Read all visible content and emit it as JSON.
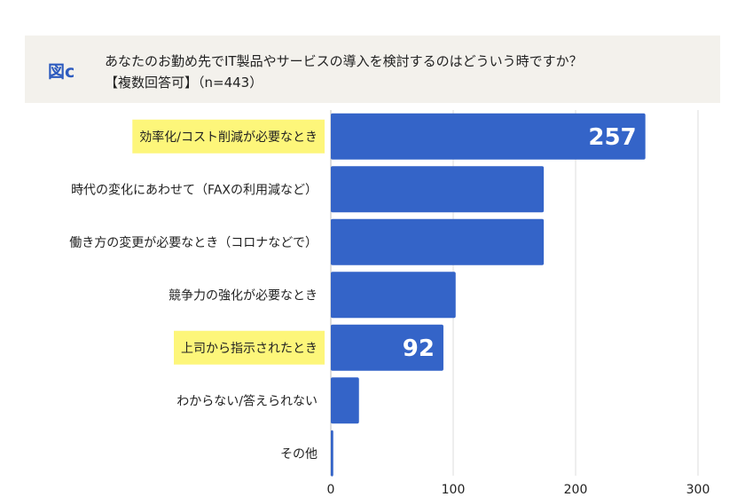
{
  "header": {
    "figure_label": "図c",
    "question": "あなたのお勤め先でIT製品やサービスの導入を検討するのはどういう時ですか？",
    "subtitle": "【複数回答可】（n=443）"
  },
  "colors": {
    "bar": "#3464c8",
    "highlight": "#fdf67a",
    "header_bg": "#f3f1ec",
    "grid": "#dddddd"
  },
  "chart_data": {
    "type": "bar",
    "orientation": "horizontal",
    "categories": [
      "効率化/コスト削減が必要なとき",
      "時代の変化にあわせて（FAXの利用減など）",
      "働き方の変更が必要なとき（コロナなどで）",
      "競争力の強化が必要なとき",
      "上司から指示されたとき",
      "わからない/答えられない",
      "その他"
    ],
    "values": [
      257,
      174,
      174,
      102,
      92,
      23,
      2
    ],
    "highlighted": [
      true,
      false,
      false,
      false,
      true,
      false,
      false
    ],
    "data_labels": [
      "257",
      "",
      "",
      "",
      "92",
      "",
      ""
    ],
    "x_ticks": [
      "0",
      "100",
      "200",
      "300"
    ],
    "xlim": [
      0,
      300
    ],
    "grid": true
  }
}
